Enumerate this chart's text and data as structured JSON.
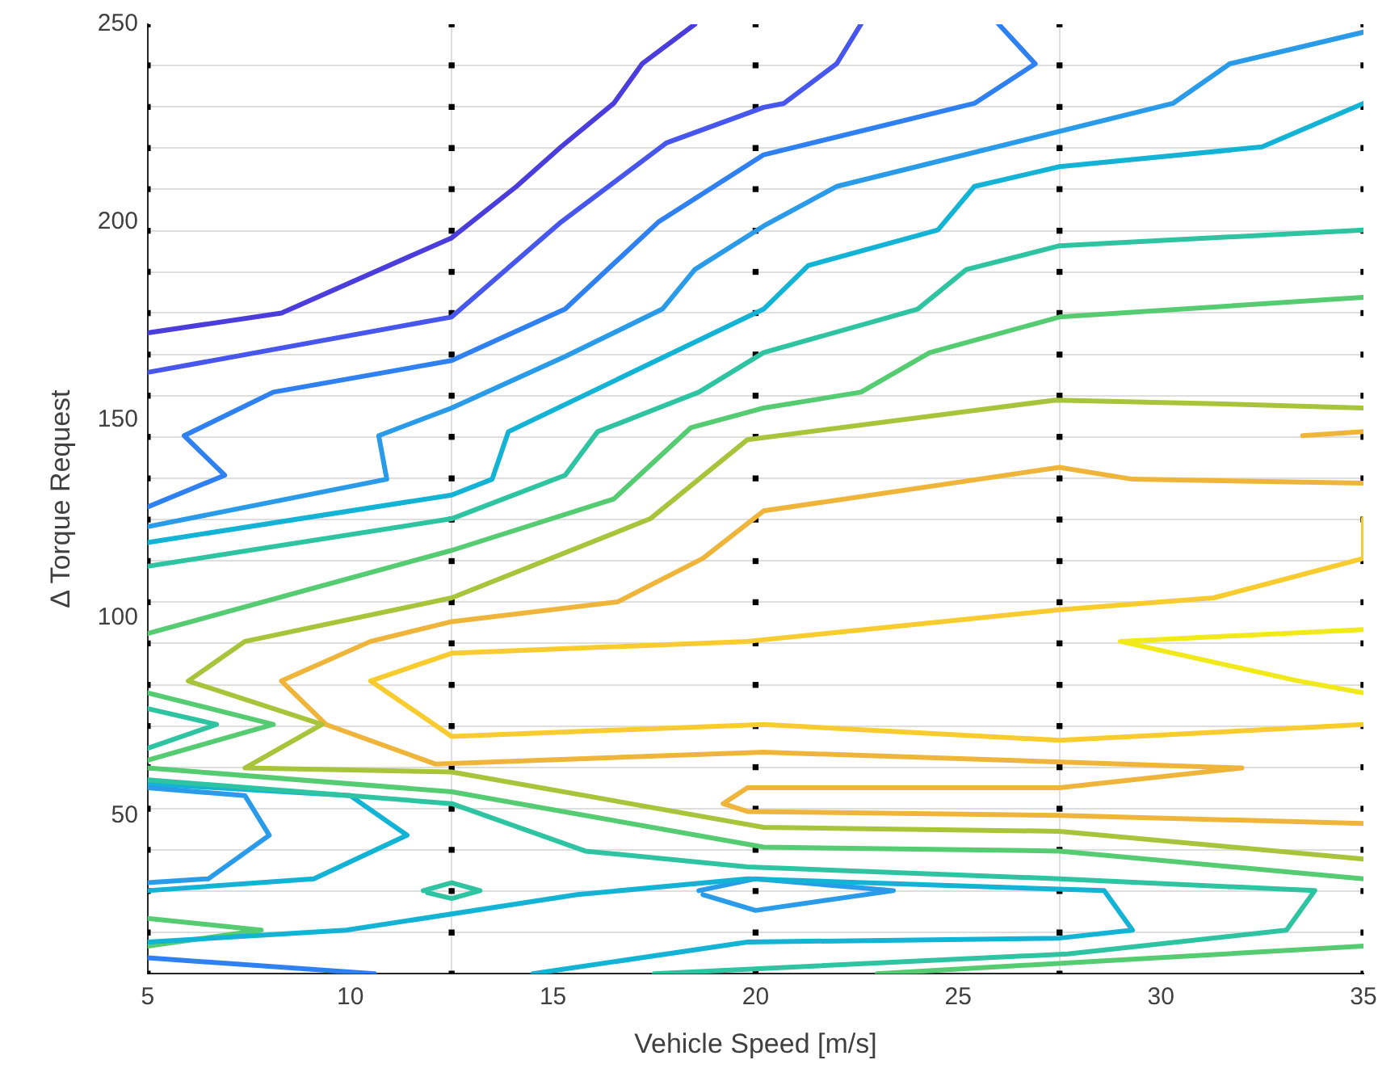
{
  "chart_data": {
    "type": "line",
    "xlabel": "Vehicle Speed [m/s]",
    "ylabel": "Δ Torque Request",
    "xlim": [
      5,
      35
    ],
    "ylim": [
      10,
      250
    ],
    "xticks": [
      5,
      10,
      {
        "value": 12.5,
        "label": null
      },
      15,
      20,
      25,
      {
        "value": 27.5,
        "label": null
      },
      30,
      35
    ],
    "yticks": [
      {
        "value": 10,
        "label": null
      },
      {
        "value": 20.4,
        "label": null
      },
      {
        "value": 30.9,
        "label": null
      },
      {
        "value": 41.3,
        "label": null
      },
      50,
      {
        "value": 51.7,
        "label": null
      },
      {
        "value": 62.2,
        "label": null
      },
      {
        "value": 72.6,
        "label": null
      },
      {
        "value": 83,
        "label": null
      },
      {
        "value": 93.5,
        "label": null
      },
      100,
      {
        "value": 103.9,
        "label": null
      },
      {
        "value": 114.3,
        "label": null
      },
      {
        "value": 124.8,
        "label": null
      },
      {
        "value": 135.2,
        "label": null
      },
      {
        "value": 145.7,
        "label": null
      },
      150,
      {
        "value": 156.1,
        "label": null
      },
      {
        "value": 166.5,
        "label": null
      },
      {
        "value": 177,
        "label": null
      },
      {
        "value": 187.4,
        "label": null
      },
      {
        "value": 197.8,
        "label": null
      },
      200,
      {
        "value": 208.3,
        "label": null
      },
      {
        "value": 218.7,
        "label": null
      },
      {
        "value": 229.1,
        "label": null
      },
      {
        "value": 239.6,
        "label": null
      },
      250
    ],
    "grid": true,
    "legend": false,
    "marker": "none",
    "line_style": "solid",
    "series": [
      {
        "color": "#4a3ddc",
        "x": [
          5,
          8.3,
          12.5,
          14.1,
          15.2,
          16.5,
          17.2,
          18.5
        ],
        "values": [
          172,
          177,
          196,
          209,
          219,
          230,
          240,
          250
        ]
      },
      {
        "color": "#4756ec",
        "x": [
          5,
          12.5,
          15.2,
          17.8,
          20.2,
          20.7,
          22,
          22.6
        ],
        "values": [
          162,
          176,
          200,
          220,
          229,
          230,
          240,
          250
        ]
      },
      {
        "color": "#2f80f0",
        "x": [
          5,
          6.9,
          5.9,
          8.1,
          12.5,
          15.3,
          17.6,
          20.2,
          25.4,
          26.9,
          26
        ],
        "values": [
          128,
          136,
          146,
          157,
          165,
          178,
          200,
          217,
          230,
          240,
          250
        ]
      },
      {
        "color": "#2a9be8",
        "x": [
          5,
          10.9,
          10.7,
          12.5,
          15.3,
          17.7,
          18.5,
          20.2,
          22,
          30.3,
          31.7,
          35
        ],
        "values": [
          123,
          135,
          146,
          153,
          166,
          178,
          188,
          199,
          209,
          230,
          240,
          248
        ]
      },
      {
        "color": "#12b3d4",
        "x": [
          5,
          12.5,
          13.5,
          13.9,
          20.2,
          21.3,
          24.5,
          25.4,
          27.5,
          32.5,
          35
        ],
        "values": [
          119,
          131,
          135,
          147,
          178,
          189,
          198,
          209,
          214,
          219,
          230
        ]
      },
      {
        "color": "#2ec4a2",
        "x": [
          5,
          12.5,
          15.3,
          16.1,
          18.6,
          20.2,
          24,
          25.2,
          27.5,
          35
        ],
        "values": [
          113,
          125,
          136,
          147,
          157,
          167,
          178,
          188,
          194,
          198
        ]
      },
      {
        "color": "#56cc72",
        "x": [
          5,
          12.5,
          16.5,
          18.4,
          20.2,
          22.6,
          24.3,
          27.5,
          35
        ],
        "values": [
          96,
          117,
          130,
          148,
          153,
          157,
          167,
          176,
          181
        ]
      },
      {
        "color": "#a8c43a",
        "x": [
          35,
          31.6,
          27.4,
          19.8,
          17.4,
          12.5,
          7.4,
          6,
          9.3,
          7.4,
          12.5,
          20.2,
          27.5,
          35
        ],
        "values": [
          153,
          154,
          155,
          145,
          125,
          105,
          94,
          84,
          73,
          62,
          61,
          47,
          46,
          39
        ]
      },
      {
        "color": "#efb53a",
        "x": [
          35,
          29.3,
          27.5,
          20.2,
          18.7,
          16.6,
          12.5,
          10.5,
          8.3,
          9.4,
          12.1,
          20.2,
          32,
          27.5,
          19.8,
          19.2,
          19.8,
          27.5,
          35
        ],
        "values": [
          134,
          135,
          138,
          127,
          115,
          104,
          99,
          94,
          84,
          73,
          63,
          66,
          62,
          57,
          57,
          53,
          51,
          50,
          48
        ]
      },
      {
        "color": "#f8cc2e",
        "x": [
          35,
          35,
          31.3,
          27.5,
          19.8,
          12.5,
          10.5,
          12.5,
          20.2,
          27.5,
          35
        ],
        "values": [
          125,
          115,
          105,
          102,
          94,
          91,
          84,
          70,
          73,
          69,
          73
        ]
      },
      {
        "color": "#efb53a",
        "x": [
          33.5,
          35
        ],
        "values": [
          146,
          147
        ]
      },
      {
        "color": "#f2ea18",
        "x": [
          35,
          29,
          33.4,
          35
        ],
        "values": [
          97,
          94,
          84,
          81
        ]
      },
      {
        "color": "#56cc72",
        "x": [
          5,
          12.5,
          20.2,
          27.5,
          35
        ],
        "values": [
          62,
          56,
          42,
          41,
          34
        ]
      },
      {
        "color": "#56cc72",
        "x": [
          5,
          8.1,
          5
        ],
        "values": [
          81,
          73,
          64
        ]
      },
      {
        "color": "#2ec4a2",
        "x": [
          5,
          6.7,
          5
        ],
        "values": [
          77,
          73,
          67
        ]
      },
      {
        "color": "#2ec4a2",
        "x": [
          5,
          12.5,
          15.8,
          19.8,
          27.5,
          33.8,
          33.1,
          27.7,
          17.5
        ],
        "values": [
          59,
          53,
          41,
          37,
          34,
          31,
          21,
          15,
          10
        ]
      },
      {
        "color": "#2a9be8",
        "x": [
          5,
          7.4,
          8,
          6.5,
          5
        ],
        "values": [
          57,
          55,
          45,
          34,
          33
        ]
      },
      {
        "color": "#12b3d4",
        "x": [
          5,
          10,
          11.4,
          9.1,
          5
        ],
        "values": [
          58,
          55,
          45,
          34,
          31
        ]
      },
      {
        "color": "#12b3d4",
        "x": [
          5,
          9.9,
          15.6,
          19.8,
          28.6,
          29.3,
          27.5,
          19.8,
          14.5
        ],
        "values": [
          18,
          21,
          30,
          34,
          31,
          21,
          19,
          18,
          10
        ]
      },
      {
        "color": "#2a9be8",
        "x": [
          18.6,
          20,
          23.4,
          20,
          18.7
        ],
        "values": [
          31,
          34,
          31,
          26,
          30
        ]
      },
      {
        "color": "#2ec4a2",
        "x": [
          11.8,
          12.5,
          13.2,
          12.5,
          11.9
        ],
        "values": [
          31,
          33,
          31,
          29,
          30.5
        ]
      },
      {
        "color": "#56cc72",
        "x": [
          23,
          35
        ],
        "values": [
          10,
          17
        ]
      },
      {
        "color": "#56cc72",
        "x": [
          5,
          7.8,
          5
        ],
        "values": [
          24,
          21,
          17
        ]
      },
      {
        "color": "#2f80f0",
        "x": [
          5,
          10.6
        ],
        "values": [
          14,
          10
        ]
      },
      {
        "type": "scatter",
        "marker": "square",
        "color": "#000000",
        "x": [
          5,
          5,
          5,
          5,
          5,
          5,
          5,
          5,
          5,
          5,
          5,
          5,
          5,
          5,
          5,
          5,
          5,
          5,
          5,
          5,
          5,
          5,
          5,
          5,
          12.5,
          12.5,
          12.5,
          12.5,
          12.5,
          12.5,
          12.5,
          12.5,
          12.5,
          12.5,
          12.5,
          12.5,
          12.5,
          12.5,
          12.5,
          12.5,
          12.5,
          12.5,
          12.5,
          12.5,
          12.5,
          12.5,
          12.5,
          12.5,
          20,
          20,
          20,
          20,
          20,
          20,
          20,
          20,
          20,
          20,
          20,
          20,
          20,
          20,
          20,
          20,
          20,
          20,
          20,
          20,
          20,
          20,
          20,
          20,
          27.5,
          27.5,
          27.5,
          27.5,
          27.5,
          27.5,
          27.5,
          27.5,
          27.5,
          27.5,
          27.5,
          27.5,
          27.5,
          27.5,
          27.5,
          27.5,
          27.5,
          27.5,
          27.5,
          27.5,
          27.5,
          27.5,
          27.5,
          27.5,
          35,
          35,
          35,
          35,
          35,
          35,
          35,
          35,
          35,
          35,
          35,
          35,
          35,
          35,
          35,
          35,
          35,
          35,
          35,
          35,
          35,
          35,
          35,
          35
        ],
        "values": [
          10,
          20.4,
          30.9,
          41.3,
          51.7,
          62.2,
          72.6,
          83,
          93.5,
          103.9,
          114.3,
          124.8,
          135.2,
          145.7,
          156.1,
          166.5,
          177,
          187.4,
          197.8,
          208.3,
          218.7,
          229.1,
          239.6,
          250,
          10,
          20.4,
          30.9,
          41.3,
          51.7,
          62.2,
          72.6,
          83,
          93.5,
          103.9,
          114.3,
          124.8,
          135.2,
          145.7,
          156.1,
          166.5,
          177,
          187.4,
          197.8,
          208.3,
          218.7,
          229.1,
          239.6,
          250,
          10,
          20.4,
          30.9,
          41.3,
          51.7,
          62.2,
          72.6,
          83,
          93.5,
          103.9,
          114.3,
          124.8,
          135.2,
          145.7,
          156.1,
          166.5,
          177,
          187.4,
          197.8,
          208.3,
          218.7,
          229.1,
          239.6,
          250,
          10,
          20.4,
          30.9,
          41.3,
          51.7,
          62.2,
          72.6,
          83,
          93.5,
          103.9,
          114.3,
          124.8,
          135.2,
          145.7,
          156.1,
          166.5,
          177,
          187.4,
          197.8,
          208.3,
          218.7,
          229.1,
          239.6,
          250,
          10,
          20.4,
          30.9,
          41.3,
          51.7,
          62.2,
          72.6,
          83,
          93.5,
          103.9,
          114.3,
          124.8,
          135.2,
          145.7,
          156.1,
          166.5,
          177,
          187.4,
          197.8,
          208.3,
          218.7,
          229.1,
          239.6,
          250
        ]
      }
    ]
  }
}
